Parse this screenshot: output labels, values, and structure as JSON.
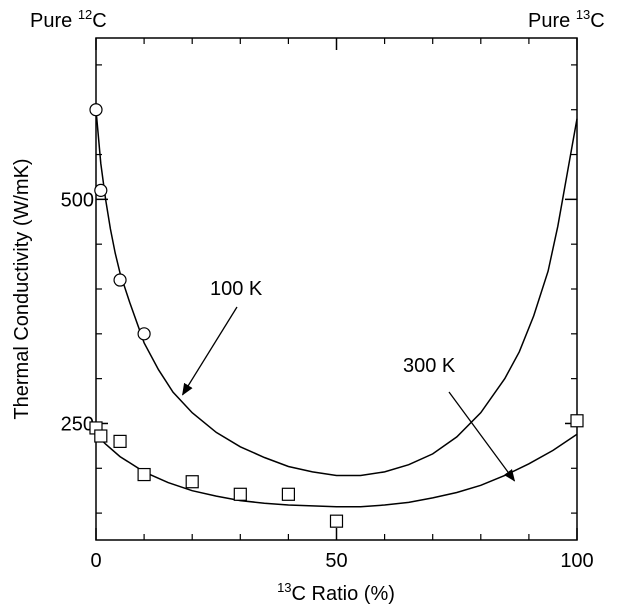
{
  "chart_data": {
    "type": "scatter",
    "top_left_label": {
      "prefix": "Pure ",
      "sup": "12",
      "suffix": "C"
    },
    "top_right_label": {
      "prefix": "Pure ",
      "sup": "13",
      "suffix": "C"
    },
    "xlabel": {
      "sup": "13",
      "text": "C Ratio (%)"
    },
    "ylabel": "Thermal Conductivity (W/mK)",
    "xlim": [
      0,
      100
    ],
    "ylim": [
      120,
      680
    ],
    "x_ticks": [
      0,
      50,
      100
    ],
    "x_tick_labels": [
      "0",
      "50",
      "100"
    ],
    "y_ticks": [
      250,
      500
    ],
    "y_tick_labels": [
      "250",
      "500"
    ],
    "grid": false,
    "series": [
      {
        "name": "100 K",
        "marker": "circle",
        "points": [
          [
            0,
            600
          ],
          [
            1,
            510
          ],
          [
            5,
            410
          ],
          [
            10,
            350
          ]
        ],
        "curve": [
          [
            0,
            600
          ],
          [
            1,
            540
          ],
          [
            2,
            500
          ],
          [
            3,
            467
          ],
          [
            4,
            440
          ],
          [
            5,
            418
          ],
          [
            7,
            385
          ],
          [
            10,
            340
          ],
          [
            13,
            310
          ],
          [
            16,
            285
          ],
          [
            20,
            262
          ],
          [
            25,
            240
          ],
          [
            30,
            224
          ],
          [
            35,
            212
          ],
          [
            40,
            202
          ],
          [
            45,
            196
          ],
          [
            50,
            192
          ],
          [
            55,
            192
          ],
          [
            60,
            196
          ],
          [
            65,
            204
          ],
          [
            70,
            216
          ],
          [
            75,
            235
          ],
          [
            80,
            262
          ],
          [
            85,
            300
          ],
          [
            88,
            330
          ],
          [
            91,
            370
          ],
          [
            94,
            420
          ],
          [
            96,
            470
          ],
          [
            98,
            530
          ],
          [
            100,
            590
          ]
        ]
      },
      {
        "name": "300 K",
        "marker": "square",
        "points": [
          [
            0,
            245
          ],
          [
            1,
            236
          ],
          [
            5,
            230
          ],
          [
            10,
            193
          ],
          [
            20,
            185
          ],
          [
            30,
            171
          ],
          [
            40,
            171
          ],
          [
            50,
            141
          ],
          [
            100,
            253
          ]
        ],
        "curve": [
          [
            0,
            238
          ],
          [
            2,
            227
          ],
          [
            5,
            213
          ],
          [
            10,
            196
          ],
          [
            15,
            184
          ],
          [
            20,
            175
          ],
          [
            25,
            169
          ],
          [
            30,
            164
          ],
          [
            35,
            161
          ],
          [
            40,
            159
          ],
          [
            45,
            158
          ],
          [
            50,
            157
          ],
          [
            55,
            157
          ],
          [
            60,
            159
          ],
          [
            65,
            162
          ],
          [
            70,
            167
          ],
          [
            75,
            173
          ],
          [
            80,
            181
          ],
          [
            85,
            192
          ],
          [
            90,
            205
          ],
          [
            95,
            220
          ],
          [
            100,
            238
          ]
        ]
      }
    ],
    "annotations": [
      {
        "text": "100 K",
        "arrow_to": [
          18,
          282
        ]
      },
      {
        "text": "300 K",
        "arrow_to": [
          87,
          186
        ]
      }
    ]
  }
}
